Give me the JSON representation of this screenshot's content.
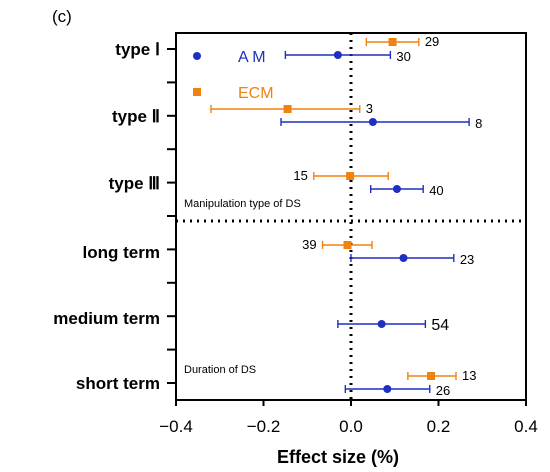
{
  "chart_data": {
    "type": "forest",
    "panel_label": "(c)",
    "xlabel": "Effect size (%)",
    "xlim": [
      -0.4,
      0.4
    ],
    "xticks": [
      "-0.4",
      "-0.2",
      "0.0",
      "0.2",
      "0.4"
    ],
    "categories": [
      "type Ⅰ",
      "type Ⅱ",
      "type Ⅲ",
      "long term",
      "medium term",
      "short term"
    ],
    "section_labels": [
      "Manipulation type of DS",
      "Duration of DS"
    ],
    "series": [
      {
        "name": "A M",
        "color": "#1f2fbf",
        "marker": "circle",
        "points": [
          {
            "category": "type Ⅰ",
            "mean": -0.03,
            "low": -0.15,
            "high": 0.09,
            "n": "30"
          },
          {
            "category": "type Ⅱ",
            "mean": 0.05,
            "low": -0.16,
            "high": 0.27,
            "n": "8"
          },
          {
            "category": "type Ⅲ",
            "mean": 0.105,
            "low": 0.045,
            "high": 0.165,
            "n": "40"
          },
          {
            "category": "long term",
            "mean": 0.12,
            "low": 0.0,
            "high": 0.235,
            "n": "23"
          },
          {
            "category": "medium term",
            "mean": 0.07,
            "low": -0.03,
            "high": 0.17,
            "n": "54"
          },
          {
            "category": "short term",
            "mean": 0.083,
            "low": -0.013,
            "high": 0.18,
            "n": "26"
          }
        ]
      },
      {
        "name": "ECM",
        "color": "#f0820f",
        "marker": "square",
        "points": [
          {
            "category": "type Ⅰ",
            "mean": 0.095,
            "low": 0.035,
            "high": 0.155,
            "n": "29"
          },
          {
            "category": "type Ⅱ",
            "mean": -0.145,
            "low": -0.32,
            "high": 0.02,
            "n": "3"
          },
          {
            "category": "type Ⅲ",
            "mean": -0.002,
            "low": -0.085,
            "high": 0.085,
            "n": "15"
          },
          {
            "category": "long term",
            "mean": -0.008,
            "low": -0.065,
            "high": 0.048,
            "n": "39"
          },
          {
            "category": "short term",
            "mean": 0.183,
            "low": 0.13,
            "high": 0.24,
            "n": "13"
          }
        ]
      }
    ]
  }
}
